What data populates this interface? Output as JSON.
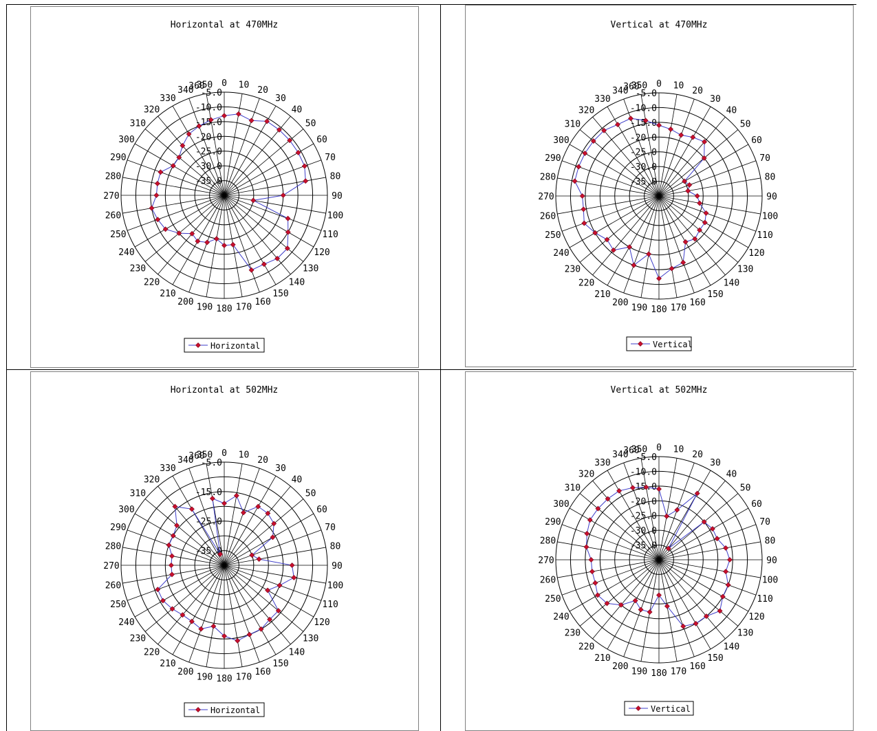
{
  "colors": {
    "line": "#3c3cc8",
    "marker": "#c8102e"
  },
  "angle_labels": [
    "0",
    "10",
    "20",
    "30",
    "40",
    "50",
    "60",
    "70",
    "80",
    "90",
    "100",
    "110",
    "120",
    "130",
    "140",
    "150",
    "160",
    "170",
    "180",
    "190",
    "200",
    "210",
    "220",
    "230",
    "240",
    "250",
    "260",
    "270",
    "280",
    "290",
    "300",
    "310",
    "320",
    "330",
    "340",
    "350",
    "360"
  ],
  "ring_labels_full": [
    "-5.0",
    "-10.0",
    "-15.0",
    "-20.0",
    "-25.0",
    "-30.0",
    "-35.0"
  ],
  "ring_labels_h502": [
    "-5.0",
    "-15.0",
    "-25.0",
    "-35.0"
  ],
  "chart_data": [
    {
      "type": "radar",
      "title": "Horizontal at 470MHz",
      "angles": [
        0,
        10,
        20,
        30,
        40,
        50,
        60,
        70,
        80,
        90,
        100,
        110,
        120,
        130,
        140,
        150,
        160,
        170,
        180,
        190,
        200,
        210,
        220,
        230,
        240,
        250,
        260,
        270,
        280,
        290,
        300,
        310,
        320,
        330,
        340,
        350
      ],
      "series": [
        {
          "name": "Horizontal",
          "values": [
            -13,
            -12,
            -13,
            -11,
            -11,
            -11,
            -11,
            -11,
            -12,
            -20,
            -30,
            -17,
            -15,
            -12,
            -12,
            -13,
            -13,
            -23,
            -23,
            -25,
            -23,
            -22,
            -23,
            -20,
            -17,
            -16,
            -15,
            -17,
            -17,
            -17,
            -20,
            -20,
            -18,
            -16,
            -15,
            -14
          ]
        }
      ],
      "ylim": [
        -40,
        -5
      ],
      "legend": "bottom"
    },
    {
      "type": "radar",
      "title": "Vertical at 470MHz",
      "angles": [
        0,
        10,
        20,
        30,
        40,
        50,
        60,
        70,
        80,
        90,
        100,
        110,
        120,
        130,
        140,
        150,
        160,
        170,
        180,
        190,
        200,
        210,
        220,
        230,
        240,
        250,
        260,
        270,
        280,
        290,
        300,
        310,
        320,
        330,
        340,
        350
      ],
      "series": [
        {
          "name": "Vertical",
          "values": [
            -16,
            -17,
            -18,
            -17,
            -16,
            -20,
            -30,
            -29,
            -30,
            -27,
            -26,
            -23,
            -22,
            -22,
            -21,
            -22,
            -16,
            -15,
            -12,
            -20,
            -15,
            -20,
            -16,
            -17,
            -15,
            -13,
            -14,
            -14,
            -11,
            -11,
            -11,
            -11,
            -11,
            -12,
            -12,
            -14
          ]
        }
      ],
      "ylim": [
        -40,
        -5
      ],
      "legend": "bottom"
    },
    {
      "type": "radar",
      "title": "Horizontal at 502MHz",
      "angles": [
        0,
        10,
        20,
        30,
        40,
        50,
        60,
        70,
        80,
        90,
        100,
        110,
        120,
        130,
        140,
        150,
        160,
        170,
        180,
        190,
        200,
        210,
        220,
        230,
        240,
        250,
        260,
        270,
        280,
        290,
        300,
        310,
        320,
        330,
        340,
        350
      ],
      "series": [
        {
          "name": "Horizontal",
          "values": [
            -19,
            -16,
            -21,
            -17,
            -17,
            -18,
            -21,
            -30,
            -28,
            -17,
            -16,
            -20,
            -23,
            -16,
            -16,
            -15,
            -15,
            -14,
            -16,
            -19,
            -17,
            -18,
            -18,
            -17,
            -16,
            -16,
            -22,
            -22,
            -22,
            -20,
            -20,
            -19,
            -14,
            -18,
            -36,
            -17
          ]
        }
      ],
      "ylim": [
        -40,
        -5
      ],
      "legend": "bottom"
    },
    {
      "type": "radar",
      "title": "Vertical at 502MHz",
      "angles": [
        0,
        10,
        20,
        30,
        40,
        50,
        60,
        70,
        80,
        90,
        100,
        110,
        120,
        130,
        140,
        150,
        160,
        170,
        180,
        190,
        200,
        210,
        220,
        230,
        240,
        250,
        260,
        270,
        280,
        290,
        300,
        310,
        320,
        330,
        340,
        350
      ],
      "series": [
        {
          "name": "Vertical",
          "values": [
            -16,
            -25,
            -22,
            -14,
            -35,
            -20,
            -19,
            -19,
            -17,
            -16,
            -17,
            -15,
            -15,
            -13,
            -15,
            -15,
            -16,
            -24,
            -28,
            -22,
            -22,
            -24,
            -20,
            -17,
            -16,
            -17,
            -17,
            -17,
            -15,
            -14,
            -13,
            -13,
            -13,
            -13,
            -14,
            -15
          ]
        }
      ],
      "ylim": [
        -40,
        -5
      ],
      "legend": "bottom"
    }
  ]
}
